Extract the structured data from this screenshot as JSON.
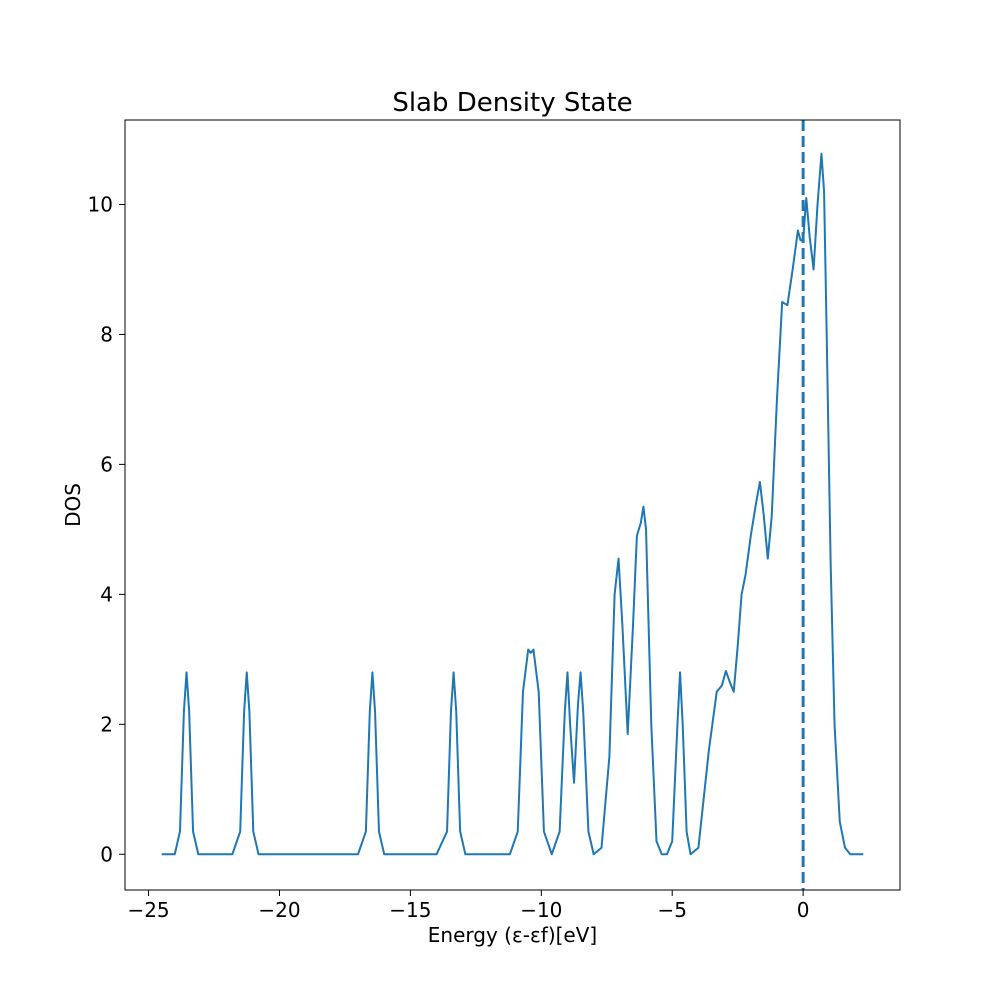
{
  "chart_data": {
    "type": "line",
    "title": "Slab Density State",
    "xlabel": "Energy (ε-εf)[eV]",
    "ylabel": "DOS",
    "xlim": [
      -25.9,
      3.7
    ],
    "ylim": [
      -0.55,
      11.3
    ],
    "xticks": [
      -25,
      -20,
      -15,
      -10,
      -5,
      0
    ],
    "xtick_labels": [
      "−25",
      "−20",
      "−15",
      "−10",
      "−5",
      "0"
    ],
    "yticks": [
      0,
      2,
      4,
      6,
      8,
      10
    ],
    "ytick_labels": [
      "0",
      "2",
      "4",
      "6",
      "8",
      "10"
    ],
    "grid": false,
    "fermi_line": {
      "x": 0,
      "style": "dashed"
    },
    "series": [
      {
        "color": "#1f77b4",
        "x": [
          -24.5,
          -24.0,
          -23.8,
          -23.65,
          -23.55,
          -23.45,
          -23.3,
          -23.1,
          -22.5,
          -21.8,
          -21.5,
          -21.35,
          -21.25,
          -21.15,
          -21.0,
          -20.8,
          -20.0,
          -17.0,
          -16.7,
          -16.55,
          -16.45,
          -16.35,
          -16.2,
          -16.0,
          -14.0,
          -13.6,
          -13.45,
          -13.35,
          -13.25,
          -13.1,
          -12.9,
          -11.2,
          -10.9,
          -10.7,
          -10.5,
          -10.4,
          -10.3,
          -10.1,
          -9.9,
          -9.6,
          -9.3,
          -9.1,
          -9.0,
          -8.9,
          -8.75,
          -8.6,
          -8.5,
          -8.4,
          -8.2,
          -8.0,
          -7.7,
          -7.4,
          -7.2,
          -7.05,
          -6.9,
          -6.7,
          -6.5,
          -6.35,
          -6.2,
          -6.1,
          -6.0,
          -5.8,
          -5.6,
          -5.4,
          -5.2,
          -5.0,
          -4.8,
          -4.7,
          -4.6,
          -4.45,
          -4.3,
          -4.0,
          -3.6,
          -3.3,
          -3.1,
          -2.95,
          -2.8,
          -2.65,
          -2.5,
          -2.35,
          -2.2,
          -2.0,
          -1.8,
          -1.65,
          -1.5,
          -1.35,
          -1.2,
          -1.0,
          -0.8,
          -0.6,
          -0.4,
          -0.2,
          -0.1,
          0.0,
          0.12,
          0.25,
          0.4,
          0.55,
          0.7,
          0.8,
          0.9,
          1.05,
          1.2,
          1.4,
          1.6,
          1.8,
          2.3
        ],
        "y": [
          0.0,
          0.0,
          0.35,
          2.2,
          2.8,
          2.2,
          0.35,
          0.0,
          0.0,
          0.0,
          0.35,
          2.2,
          2.8,
          2.2,
          0.35,
          0.0,
          0.0,
          0.0,
          0.35,
          2.2,
          2.8,
          2.2,
          0.35,
          0.0,
          0.0,
          0.35,
          2.2,
          2.8,
          2.2,
          0.35,
          0.0,
          0.0,
          0.35,
          2.5,
          3.15,
          3.1,
          3.15,
          2.5,
          0.35,
          0.0,
          0.35,
          2.2,
          2.8,
          2.0,
          1.1,
          2.3,
          2.8,
          2.2,
          0.35,
          0.0,
          0.1,
          1.5,
          4.0,
          4.55,
          3.5,
          1.85,
          3.5,
          4.9,
          5.1,
          5.35,
          5.0,
          2.0,
          0.2,
          0.0,
          0.0,
          0.2,
          2.0,
          2.8,
          2.0,
          0.35,
          0.0,
          0.1,
          1.6,
          2.5,
          2.6,
          2.82,
          2.65,
          2.5,
          3.2,
          4.0,
          4.3,
          4.9,
          5.4,
          5.73,
          5.2,
          4.55,
          5.2,
          7.0,
          8.5,
          8.45,
          9.0,
          9.6,
          9.45,
          9.45,
          10.1,
          9.5,
          9.0,
          10.0,
          10.78,
          10.2,
          8.0,
          4.5,
          2.0,
          0.5,
          0.1,
          0.0,
          0.0
        ]
      }
    ]
  }
}
